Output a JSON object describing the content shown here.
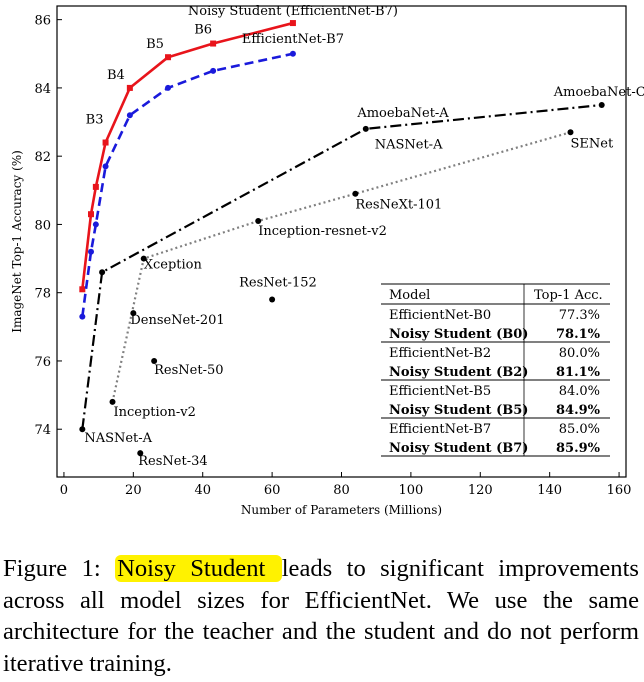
{
  "chart_data": {
    "type": "line",
    "xlabel": "Number of Parameters (Millions)",
    "ylabel": "ImageNet Top-1 Accuracy (%)",
    "xlim": [
      -2,
      162
    ],
    "ylim": [
      72.6,
      86.4
    ],
    "xticks": [
      0,
      20,
      40,
      60,
      80,
      100,
      120,
      140,
      160
    ],
    "yticks": [
      74,
      76,
      78,
      80,
      82,
      84,
      86
    ],
    "grid": false,
    "series": [
      {
        "name": "Noisy Student (EfficientNet-B7)",
        "color": "#e8141b",
        "style": "solid",
        "marker": "square",
        "x": [
          5.3,
          7.8,
          9.2,
          12,
          19,
          30,
          43,
          66
        ],
        "y": [
          78.1,
          80.3,
          81.1,
          82.4,
          84.0,
          84.9,
          85.3,
          85.9
        ]
      },
      {
        "name": "EfficientNet-B7",
        "color": "#1a1adb",
        "style": "dashed",
        "marker": "circle",
        "x": [
          5.3,
          7.8,
          9.2,
          12,
          19,
          30,
          43,
          66
        ],
        "y": [
          77.3,
          79.2,
          80.0,
          81.7,
          83.2,
          84.0,
          84.5,
          85.0
        ]
      },
      {
        "name": "AmoebaNet-C",
        "color": "#000000",
        "style": "dashdot",
        "marker": "circle",
        "x": [
          5.3,
          11,
          87,
          155
        ],
        "y": [
          74.0,
          78.6,
          82.8,
          83.5
        ]
      },
      {
        "name": "SENet",
        "color": "#808080",
        "style": "dotted",
        "marker": "circle",
        "x": [
          14,
          23,
          56,
          84,
          146
        ],
        "y": [
          74.8,
          79.0,
          80.1,
          80.9,
          82.7
        ]
      }
    ],
    "efficientnet_labels": [
      "B3",
      "B4",
      "B5",
      "B6"
    ],
    "standalone_points": [
      {
        "name": "DenseNet-201",
        "x": 20,
        "y": 77.4
      },
      {
        "name": "ResNet-152",
        "x": 60,
        "y": 77.8
      },
      {
        "name": "ResNet-50",
        "x": 26,
        "y": 76.0
      },
      {
        "name": "ResNet-34",
        "x": 22,
        "y": 73.3
      }
    ],
    "point_labels": [
      {
        "text": "NASNet-A",
        "x": 5.3,
        "y": 74.0
      },
      {
        "text": "Inception-v2",
        "x": 14,
        "y": 74.8
      },
      {
        "text": "Xception",
        "x": 23,
        "y": 79.0
      },
      {
        "text": "Inception-resnet-v2",
        "x": 56,
        "y": 80.1
      },
      {
        "text": "ResNeXt-101",
        "x": 84,
        "y": 80.9
      },
      {
        "text": "AmoebaNet-A",
        "x": 86,
        "y": 82.8
      },
      {
        "text": "NASNet-A",
        "x": 89,
        "y": 82.7
      },
      {
        "text": "SENet",
        "x": 146,
        "y": 82.7
      }
    ],
    "table": {
      "headers": [
        "Model",
        "Top-1 Acc."
      ],
      "rows": [
        {
          "model": "EfficientNet-B0",
          "acc": "77.3%",
          "bold": false
        },
        {
          "model": "Noisy Student (B0)",
          "acc": "78.1%",
          "bold": true
        },
        {
          "model": "EfficientNet-B2",
          "acc": "80.0%",
          "bold": false
        },
        {
          "model": "Noisy Student (B2)",
          "acc": "81.1%",
          "bold": true
        },
        {
          "model": "EfficientNet-B5",
          "acc": "84.0%",
          "bold": false
        },
        {
          "model": "Noisy Student (B5)",
          "acc": "84.9%",
          "bold": true
        },
        {
          "model": "EfficientNet-B7",
          "acc": "85.0%",
          "bold": false
        },
        {
          "model": "Noisy Student (B7)",
          "acc": "85.9%",
          "bold": true
        }
      ]
    }
  },
  "caption": {
    "prefix": "Figure 1: ",
    "highlight": "Noisy Student ",
    "rest": "leads to significant improvements across all model sizes for EfficientNet. We use the same architecture for the teacher and the student and do not perform iterative training.",
    "highlight_color": "#fff200"
  }
}
